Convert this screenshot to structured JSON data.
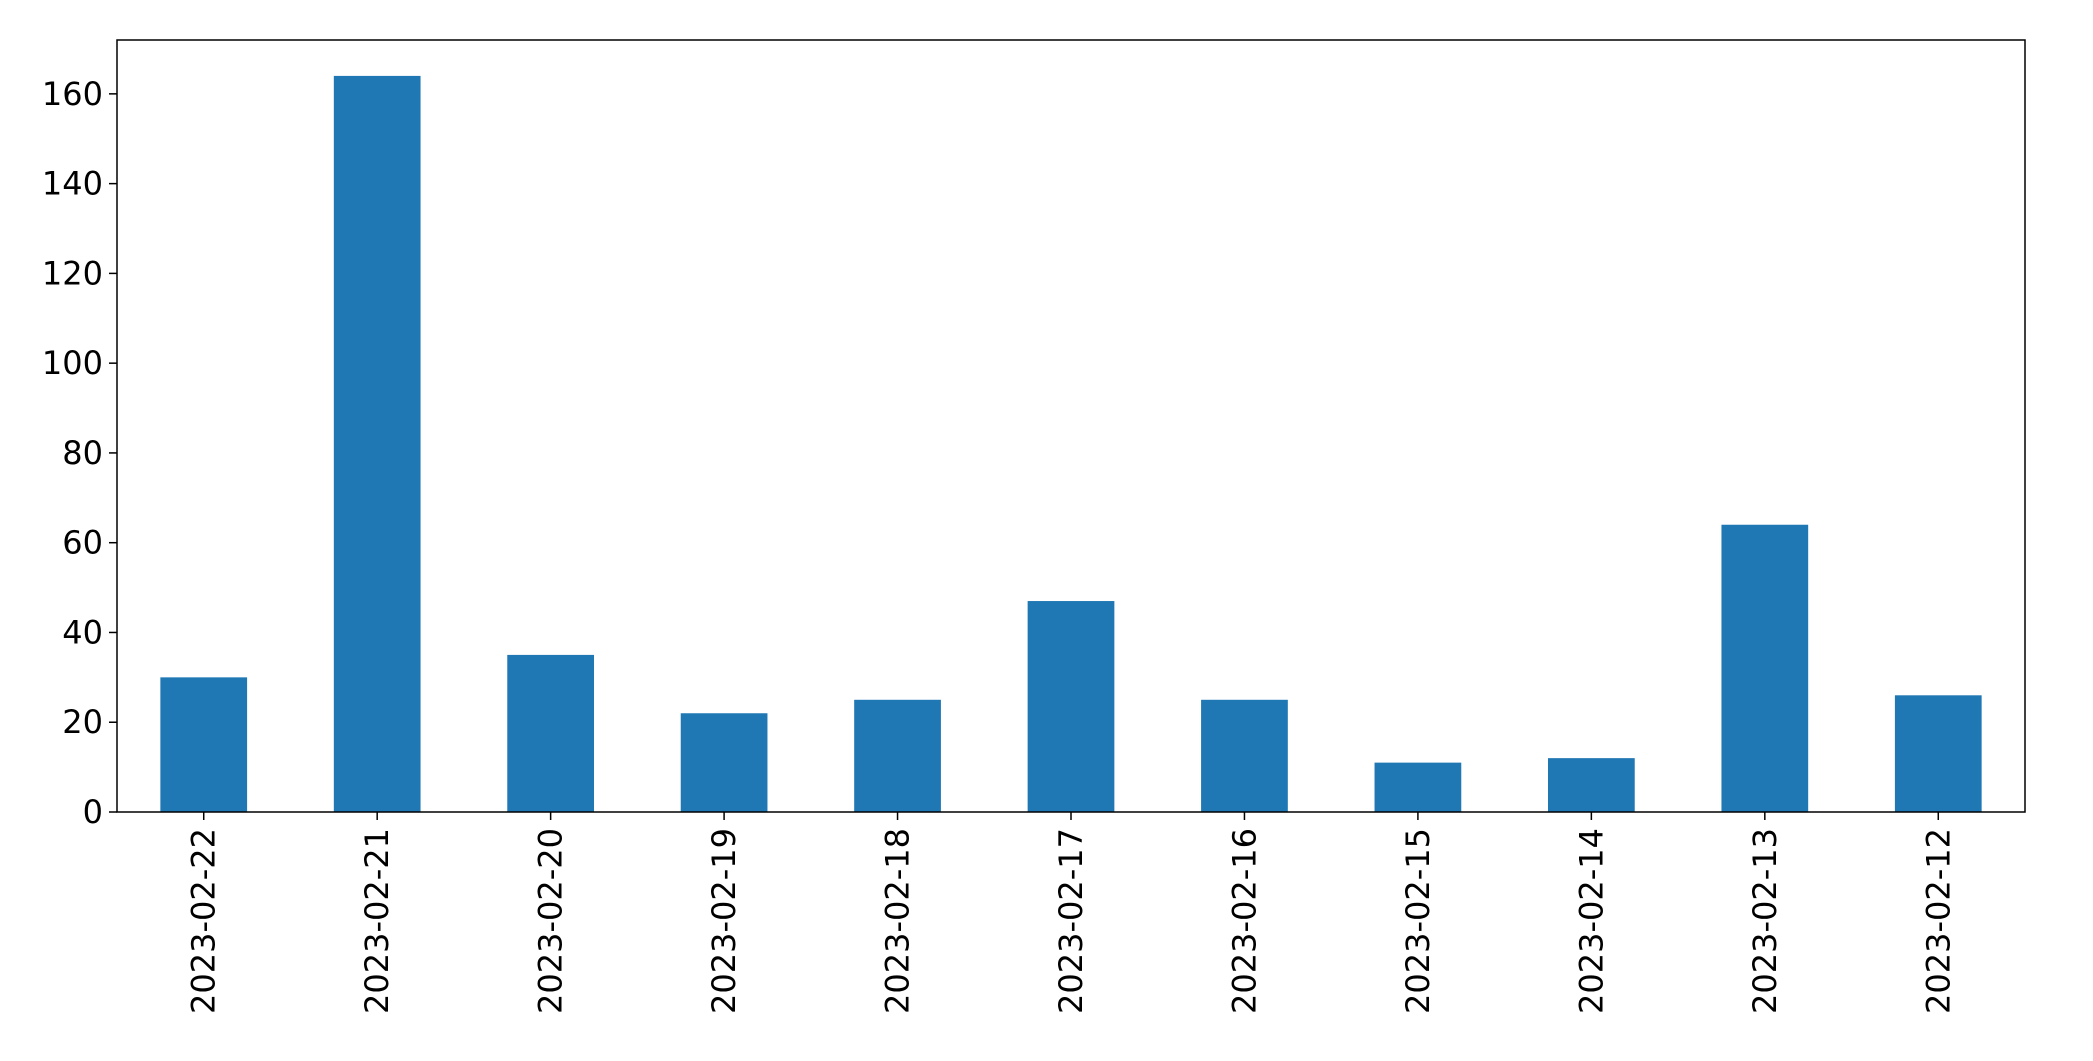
{
  "chart_data": {
    "type": "bar",
    "title": "",
    "xlabel": "",
    "ylabel": "",
    "categories": [
      "2023-02-22",
      "2023-02-21",
      "2023-02-20",
      "2023-02-19",
      "2023-02-18",
      "2023-02-17",
      "2023-02-16",
      "2023-02-15",
      "2023-02-14",
      "2023-02-13",
      "2023-02-12"
    ],
    "values": [
      30,
      164,
      35,
      22,
      25,
      47,
      25,
      11,
      12,
      64,
      26
    ],
    "ylim": [
      0,
      172
    ],
    "yticks": [
      0,
      20,
      40,
      60,
      80,
      100,
      120,
      140,
      160
    ],
    "bar_color": "#1f77b4",
    "grid": false,
    "legend": "none",
    "x_tick_rotation": "vertical"
  }
}
